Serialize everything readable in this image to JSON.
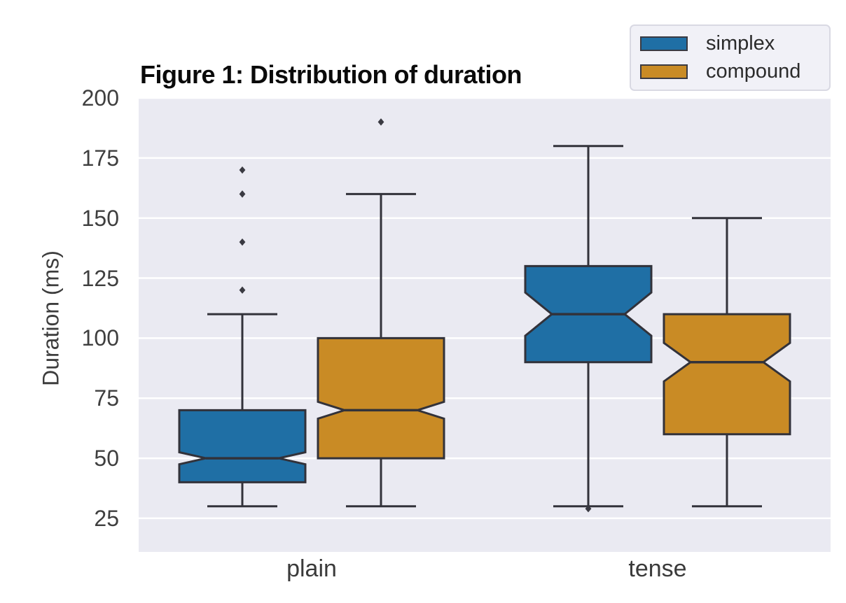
{
  "figure": {
    "title": "Figure 1: Distribution of duration"
  },
  "chart_data": {
    "type": "boxplot",
    "title": "Figure 1: Distribution of duration",
    "xlabel": "",
    "ylabel": "Duration (ms)",
    "categories": [
      "plain",
      "tense"
    ],
    "y_ticks": [
      25,
      50,
      75,
      100,
      125,
      150,
      175,
      200
    ],
    "ylim": [
      11,
      200
    ],
    "grid": "horizontal white gridlines on light-gray panel",
    "notched": true,
    "legend": {
      "position": "top-right, above plot",
      "entries": [
        {
          "label": "simplex",
          "color": "#1f6fa5"
        },
        {
          "label": "compound",
          "color": "#c98b25"
        }
      ]
    },
    "series": [
      {
        "name": "simplex",
        "color": "#1f6fa5",
        "boxes": [
          {
            "category": "plain",
            "whisker_low": 30,
            "q1": 40,
            "median": 50,
            "q3": 70,
            "whisker_high": 110,
            "notch_low": 47.5,
            "notch_high": 52.5,
            "outliers": [
              120,
              140,
              160,
              170
            ]
          },
          {
            "category": "tense",
            "whisker_low": 30,
            "q1": 90,
            "median": 110,
            "q3": 130,
            "whisker_high": 180,
            "notch_low": 101,
            "notch_high": 119,
            "outliers": [
              29
            ]
          }
        ]
      },
      {
        "name": "compound",
        "color": "#c98b25",
        "boxes": [
          {
            "category": "plain",
            "whisker_low": 30,
            "q1": 50,
            "median": 70,
            "q3": 100,
            "whisker_high": 160,
            "notch_low": 66.5,
            "notch_high": 73.5,
            "outliers": [
              190
            ]
          },
          {
            "category": "tense",
            "whisker_low": 30,
            "q1": 60,
            "median": 90,
            "q3": 110,
            "whisker_high": 150,
            "notch_low": 82,
            "notch_high": 98,
            "outliers": []
          }
        ]
      }
    ],
    "style": {
      "plot_bg": "#eaeaf2",
      "grid_color": "#ffffff",
      "line_color": "#32323a",
      "tick_color": "#3f3f3f",
      "legend_bg": "#f1f1f7",
      "legend_border": "#d9d9e3"
    }
  }
}
